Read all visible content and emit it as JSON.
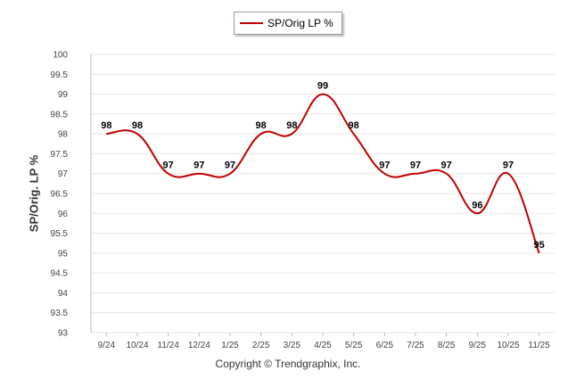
{
  "chart_data": {
    "type": "line",
    "categories": [
      "9/24",
      "10/24",
      "11/24",
      "12/24",
      "1/25",
      "2/25",
      "3/25",
      "4/25",
      "5/25",
      "6/25",
      "7/25",
      "8/25",
      "9/25",
      "10/25",
      "11/25"
    ],
    "series": [
      {
        "name": "SP/Orig LP %",
        "values": [
          98,
          98,
          97,
          97,
          97,
          98,
          98,
          99,
          98,
          97,
          97,
          97,
          96,
          97,
          95
        ],
        "labels": [
          "98",
          "98",
          "97",
          "97",
          "97",
          "98",
          "98",
          "99",
          "98",
          "97",
          "97",
          "97",
          "96",
          "97",
          "95"
        ]
      }
    ],
    "ylabel": "SP/Orig. LP %",
    "ylim": [
      93,
      100
    ],
    "yticks": [
      "93",
      "93.5",
      "94",
      "94.5",
      "95",
      "95.5",
      "96",
      "96.5",
      "97",
      "97.5",
      "98",
      "98.5",
      "99",
      "99.5",
      "100"
    ],
    "grid": true,
    "legend_position": "top-center",
    "caption": "Copyright © Trendgraphix, Inc.",
    "colors": {
      "line": "#c00000",
      "grid": "#e6e6e6",
      "axis": "#bbbbbb"
    }
  }
}
